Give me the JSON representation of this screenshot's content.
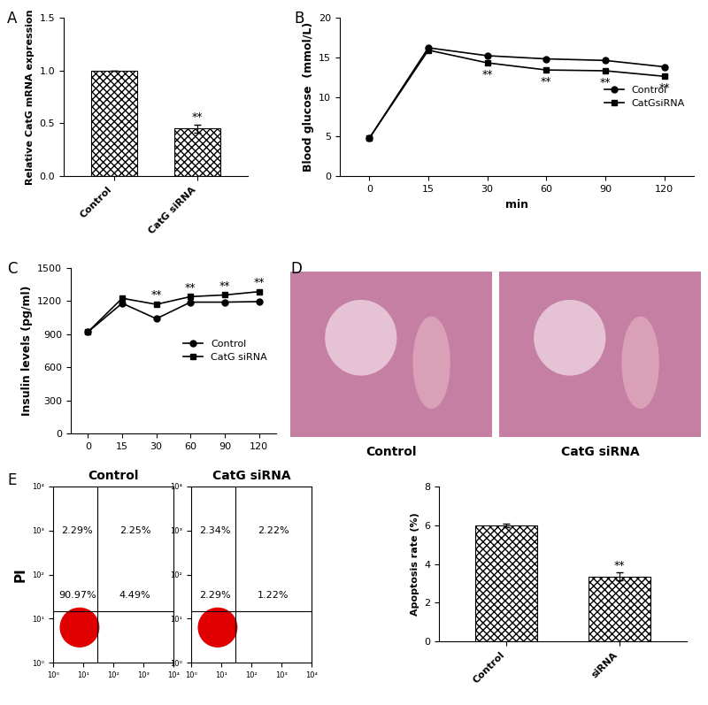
{
  "chart_data": [
    {
      "type": "bar",
      "panel": "A",
      "categories": [
        "Control",
        "CatG siRNA"
      ],
      "values": [
        1.0,
        0.45
      ],
      "errors": [
        0,
        0.04
      ],
      "significance": [
        null,
        "**"
      ],
      "color": "#ffffff",
      "ylabel": "Relative CatG mRNA expression",
      "ylim": [
        0,
        1.5
      ],
      "yticks": [
        0.0,
        0.5,
        1.0,
        1.5
      ]
    },
    {
      "type": "line",
      "panel": "B",
      "categories": [
        "0",
        "15",
        "30",
        "60",
        "90",
        "120"
      ],
      "xlabel": "min",
      "ylabel": "Blood glucose  (mmol/L)",
      "ylim": [
        0,
        20
      ],
      "yticks": [
        0,
        5,
        10,
        15,
        20
      ],
      "legend": "center right",
      "series": [
        {
          "name": "Control",
          "color": "#000000",
          "marker": "circle",
          "values": [
            4.8,
            16.2,
            15.2,
            14.8,
            14.6,
            13.8
          ],
          "significance": [
            null,
            null,
            null,
            null,
            null,
            null
          ]
        },
        {
          "name": "CatGsiRNA",
          "color": "#000000",
          "marker": "square",
          "values": [
            4.8,
            15.9,
            14.3,
            13.4,
            13.3,
            12.6
          ],
          "significance": [
            null,
            null,
            "**",
            "**",
            "**",
            "**"
          ]
        }
      ]
    },
    {
      "type": "line",
      "panel": "C",
      "categories": [
        "0",
        "15",
        "30",
        "60",
        "90",
        "120"
      ],
      "ylabel": "Insulin levels (pg/ml)",
      "ylim": [
        0,
        1500
      ],
      "yticks": [
        0,
        300,
        600,
        900,
        1200,
        1500
      ],
      "legend": "center right",
      "series": [
        {
          "name": "Control",
          "color": "#000000",
          "marker": "circle",
          "values": [
            920,
            1180,
            1040,
            1190,
            1190,
            1195
          ],
          "significance": [
            null,
            null,
            null,
            null,
            null,
            null
          ]
        },
        {
          "name": "CatG siRNA",
          "color": "#000000",
          "marker": "square",
          "values": [
            920,
            1225,
            1170,
            1240,
            1255,
            1285
          ],
          "significance": [
            null,
            null,
            "**",
            "**",
            "**",
            "**"
          ]
        }
      ]
    },
    {
      "type": "image",
      "panel": "D",
      "captions": [
        "Control",
        "CatG siRNA"
      ]
    },
    {
      "type": "quadrant",
      "panel": "E",
      "title": "Control",
      "ylabel": "PI",
      "values": [
        2.29,
        2.25,
        90.97,
        4.49
      ],
      "value_labels": [
        "2.29%",
        "2.25%",
        "90.97%",
        "4.49%"
      ],
      "gates": {
        "x": 30,
        "y": 15
      },
      "color": "#e00000",
      "log": true,
      "xlim": [
        1,
        10000
      ],
      "ylim": [
        1,
        10000
      ],
      "xticks": [
        {
          "value": 1,
          "label": "10⁰"
        },
        {
          "value": 10,
          "label": "10¹"
        },
        {
          "value": 100,
          "label": "10²"
        },
        {
          "value": 1000,
          "label": "10³"
        },
        {
          "value": 10000,
          "label": "10⁴"
        }
      ],
      "yticks": [
        {
          "value": 1,
          "label": "10⁰"
        },
        {
          "value": 10,
          "label": "10¹"
        },
        {
          "value": 100,
          "label": "10²"
        },
        {
          "value": 1000,
          "label": "10³"
        },
        {
          "value": 10000,
          "label": "10⁴"
        }
      ]
    },
    {
      "type": "quadrant",
      "title": "CatG siRNA",
      "values": [
        2.34,
        2.22,
        2.29,
        1.22
      ],
      "value_labels": [
        "2.34%",
        "2.22%",
        "2.29%",
        "1.22%"
      ],
      "gates": {
        "x": 30,
        "y": 15
      },
      "color": "#e00000",
      "log": true,
      "xlim": [
        1,
        10000
      ],
      "ylim": [
        1,
        10000
      ],
      "xticks": [
        {
          "value": 1,
          "label": "10⁰"
        },
        {
          "value": 10,
          "label": "10¹"
        },
        {
          "value": 100,
          "label": "10²"
        },
        {
          "value": 1000,
          "label": "10³"
        },
        {
          "value": 10000,
          "label": "10⁴"
        }
      ],
      "yticks": [
        {
          "value": 1,
          "label": "10⁰"
        },
        {
          "value": 10,
          "label": "10¹"
        },
        {
          "value": 100,
          "label": "10²"
        },
        {
          "value": 1000,
          "label": "10³"
        },
        {
          "value": 10000,
          "label": "10⁴"
        }
      ]
    },
    {
      "type": "bar",
      "categories": [
        "Control",
        "siRNA"
      ],
      "values": [
        6.0,
        3.35
      ],
      "errors": [
        0.1,
        0.2
      ],
      "significance": [
        null,
        "**"
      ],
      "color": "#ffffff",
      "ylabel": "Apoptosis rate (%)",
      "ylim": [
        0,
        8
      ],
      "yticks": [
        0,
        2,
        4,
        6,
        8
      ]
    }
  ]
}
